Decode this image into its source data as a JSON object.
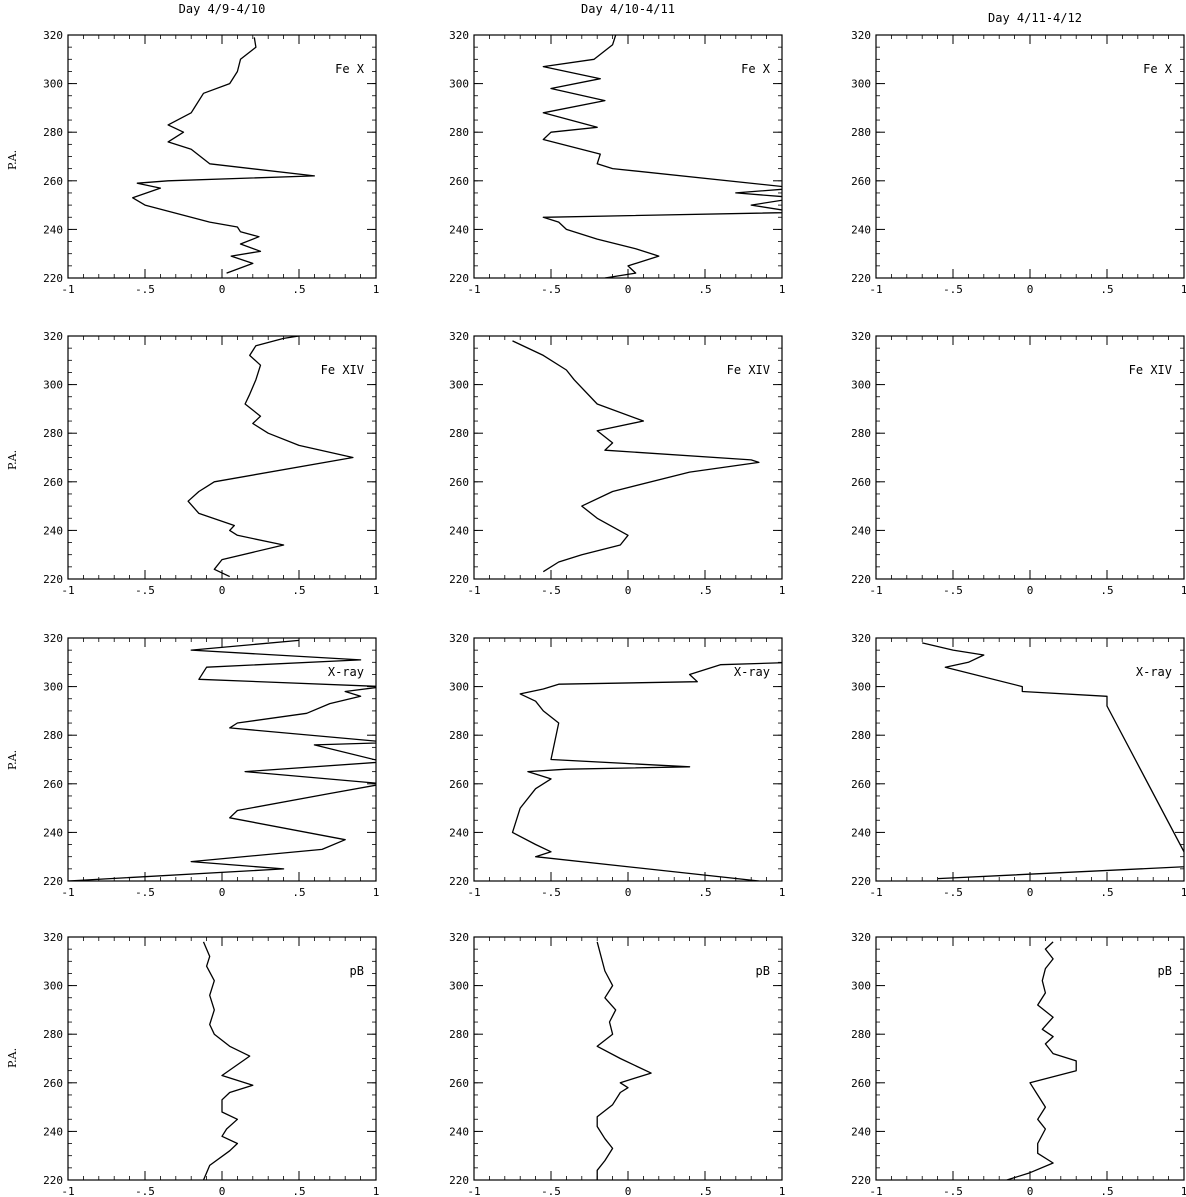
{
  "figure": {
    "column_titles": [
      "Day 4/9-4/10",
      "Day 4/10-4/11",
      "Day 4/11-4/12"
    ],
    "row_ylabel": "P.A.",
    "row_labels": [
      "Fe X",
      "Fe XIV",
      "X-ray",
      "pB"
    ]
  },
  "chart_data": [
    {
      "type": "line",
      "panel_label": "Fe X",
      "column_title": "Day 4/9-4/10",
      "ylabel": "P.A.",
      "xlim": [
        -1,
        1
      ],
      "ylim": [
        220,
        320
      ],
      "xticks": [
        "-1",
        "-.5",
        "0",
        ".5",
        "1"
      ],
      "yticks": [
        "220",
        "240",
        "260",
        "280",
        "300",
        "320"
      ],
      "series": [
        {
          "x": [
            0.03,
            0.2,
            0.06,
            0.25,
            0.12,
            0.24,
            0.12,
            0.1,
            -0.08,
            -0.5,
            -0.58,
            -0.4,
            -0.55,
            -0.35,
            0.6,
            -0.08,
            -0.2,
            -0.35,
            -0.25,
            -0.35,
            -0.2,
            -0.18,
            -0.12,
            0.05,
            0.1,
            0.12,
            0.22,
            0.21
          ],
          "y": [
            222,
            226,
            229,
            231,
            234,
            237,
            239,
            241,
            243,
            250,
            253,
            257,
            259,
            260,
            262,
            267,
            273,
            276,
            280,
            283,
            288,
            290,
            296,
            300,
            305,
            310,
            315,
            319
          ]
        }
      ]
    },
    {
      "type": "line",
      "panel_label": "Fe X",
      "column_title": "Day 4/10-4/11",
      "ylabel": "P.A.",
      "xlim": [
        -1,
        1
      ],
      "ylim": [
        220,
        320
      ],
      "xticks": [
        "-1",
        "-.5",
        "0",
        ".5",
        "1"
      ],
      "yticks": [
        "220",
        "240",
        "260",
        "280",
        "300",
        "320"
      ],
      "series": [
        {
          "x": [
            -0.15,
            0.05,
            0.0,
            0.2,
            0.05,
            -0.2,
            -0.4,
            -0.45,
            -0.55,
            1.1,
            0.8,
            1.1,
            0.7,
            1.1,
            -0.1,
            -0.2,
            -0.18,
            -0.55,
            -0.5,
            -0.2,
            -0.55,
            -0.15,
            -0.5,
            -0.18,
            -0.55,
            -0.22,
            -0.1,
            -0.08
          ],
          "y": [
            220,
            222,
            225,
            229,
            232,
            236,
            240,
            243,
            245,
            247,
            250,
            253,
            255,
            257,
            265,
            267,
            271,
            277,
            280,
            282,
            288,
            293,
            298,
            302,
            307,
            310,
            316,
            320
          ]
        }
      ]
    },
    {
      "type": "line",
      "panel_label": "Fe X",
      "column_title": "Day 4/11-4/12",
      "ylabel": "P.A.",
      "xlim": [
        -1,
        1
      ],
      "ylim": [
        220,
        320
      ],
      "xticks": [
        "-1",
        "-.5",
        "0",
        ".5",
        "1"
      ],
      "yticks": [
        "220",
        "240",
        "260",
        "280",
        "300",
        "320"
      ],
      "series": []
    },
    {
      "type": "line",
      "panel_label": "Fe XIV",
      "column_title": "Day 4/9-4/10",
      "ylabel": "P.A.",
      "xlim": [
        -1,
        1
      ],
      "ylim": [
        220,
        320
      ],
      "xticks": [
        "-1",
        "-.5",
        "0",
        ".5",
        "1"
      ],
      "yticks": [
        "220",
        "240",
        "260",
        "280",
        "300",
        "320"
      ],
      "series": [
        {
          "x": [
            0.05,
            -0.05,
            0.0,
            0.4,
            0.1,
            0.05,
            0.08,
            -0.15,
            -0.22,
            -0.15,
            -0.1,
            -0.05,
            0.85,
            0.5,
            0.3,
            0.2,
            0.25,
            0.15,
            0.18,
            0.22,
            0.25,
            0.18,
            0.22,
            0.4,
            0.5
          ],
          "y": [
            221,
            224,
            228,
            234,
            238,
            240,
            242,
            247,
            252,
            256,
            258,
            260,
            270,
            275,
            280,
            284,
            287,
            292,
            296,
            302,
            308,
            312,
            316,
            319,
            320
          ]
        }
      ]
    },
    {
      "type": "line",
      "panel_label": "Fe XIV",
      "column_title": "Day 4/10-4/11",
      "ylabel": "P.A.",
      "xlim": [
        -1,
        1
      ],
      "ylim": [
        220,
        320
      ],
      "xticks": [
        "-1",
        "-.5",
        "0",
        ".5",
        "1"
      ],
      "yticks": [
        "220",
        "240",
        "260",
        "280",
        "300",
        "320"
      ],
      "series": [
        {
          "x": [
            -0.55,
            -0.45,
            -0.3,
            -0.05,
            0.0,
            -0.2,
            -0.3,
            -0.1,
            0.4,
            0.85,
            0.8,
            -0.15,
            -0.1,
            -0.2,
            0.1,
            -0.2,
            -0.35,
            -0.4,
            -0.55,
            -0.75
          ],
          "y": [
            223,
            227,
            230,
            234,
            238,
            245,
            250,
            256,
            264,
            268,
            269,
            273,
            276,
            281,
            285,
            292,
            302,
            306,
            312,
            318
          ]
        }
      ]
    },
    {
      "type": "line",
      "panel_label": "Fe XIV",
      "column_title": "Day 4/11-4/12",
      "ylabel": "P.A.",
      "xlim": [
        -1,
        1
      ],
      "ylim": [
        220,
        320
      ],
      "xticks": [
        "-1",
        "-.5",
        "0",
        ".5",
        "1"
      ],
      "yticks": [
        "220",
        "240",
        "260",
        "280",
        "300",
        "320"
      ],
      "series": []
    },
    {
      "type": "line",
      "panel_label": "X-ray",
      "column_title": "Day 4/9-4/10",
      "ylabel": "P.A.",
      "xlim": [
        -1,
        1
      ],
      "ylim": [
        220,
        320
      ],
      "xticks": [
        "-1",
        "-.5",
        "0",
        ".5",
        "1"
      ],
      "yticks": [
        "220",
        "240",
        "260",
        "280",
        "300",
        "320"
      ],
      "series": [
        {
          "x": [
            -1.0,
            0.4,
            -0.2,
            0.65,
            0.8,
            0.05,
            0.1,
            0.7,
            1.05,
            0.15,
            1.05,
            0.6,
            1.1,
            0.05,
            0.1,
            0.55,
            0.7,
            0.9,
            0.8,
            1.05,
            -0.15,
            -0.1,
            0.9,
            -0.2,
            0.5
          ],
          "y": [
            220,
            225,
            228,
            233,
            237,
            246,
            249,
            256,
            260,
            265,
            269,
            276,
            277,
            283,
            285,
            289,
            293,
            296,
            298,
            300,
            303,
            308,
            311,
            315,
            319
          ]
        }
      ]
    },
    {
      "type": "line",
      "panel_label": "X-ray",
      "column_title": "Day 4/10-4/11",
      "ylabel": "P.A.",
      "xlim": [
        -1,
        1
      ],
      "ylim": [
        220,
        320
      ],
      "xticks": [
        "-1",
        "-.5",
        "0",
        ".5",
        "1"
      ],
      "yticks": [
        "220",
        "240",
        "260",
        "280",
        "300",
        "320"
      ],
      "series": [
        {
          "x": [
            0.85,
            -0.6,
            -0.5,
            -0.6,
            -0.75,
            -0.7,
            -0.6,
            -0.5,
            -0.65,
            -0.4,
            0.4,
            -0.5,
            -0.45,
            -0.55,
            -0.6,
            -0.7,
            -0.55,
            -0.45,
            0.45,
            0.4,
            0.6,
            1.1
          ],
          "y": [
            220,
            230,
            232,
            235,
            240,
            250,
            258,
            262,
            265,
            266,
            267,
            270,
            285,
            290,
            294,
            297,
            299,
            301,
            302,
            305,
            309,
            310
          ]
        }
      ]
    },
    {
      "type": "line",
      "panel_label": "X-ray",
      "column_title": "Day 4/11-4/12",
      "ylabel": "P.A.",
      "xlim": [
        -1,
        1
      ],
      "ylim": [
        220,
        320
      ],
      "xticks": [
        "-1",
        "-.5",
        "0",
        ".5",
        "1"
      ],
      "yticks": [
        "220",
        "240",
        "260",
        "280",
        "300",
        "320"
      ],
      "series": [
        {
          "x": [
            -0.6,
            1.05,
            0.5,
            0.5,
            -0.05,
            -0.05,
            -0.55,
            -0.4,
            -0.3,
            -0.5,
            -0.7
          ],
          "y": [
            221,
            226,
            292,
            296,
            298,
            300,
            308,
            310,
            313,
            315,
            318
          ]
        }
      ]
    },
    {
      "type": "line",
      "panel_label": "pB",
      "column_title": "Day 4/9-4/10",
      "ylabel": "P.A.",
      "xlim": [
        -1,
        1
      ],
      "ylim": [
        220,
        320
      ],
      "xticks": [
        "-1",
        "-.5",
        "0",
        ".5",
        "1"
      ],
      "yticks": [
        "220",
        "240",
        "260",
        "280",
        "300",
        "320"
      ],
      "series": [
        {
          "x": [
            -0.12,
            -0.1,
            -0.08,
            0.05,
            0.1,
            0.0,
            0.03,
            0.1,
            0.0,
            0.0,
            0.05,
            0.2,
            0.0,
            0.18,
            0.05,
            -0.05,
            -0.08,
            -0.05,
            -0.08,
            -0.05,
            -0.1,
            -0.08,
            -0.12
          ],
          "y": [
            220,
            223,
            226,
            232,
            235,
            238,
            241,
            245,
            248,
            253,
            256,
            259,
            263,
            271,
            275,
            280,
            284,
            290,
            296,
            302,
            308,
            312,
            318
          ]
        }
      ]
    },
    {
      "type": "line",
      "panel_label": "pB",
      "column_title": "Day 4/10-4/11",
      "ylabel": "P.A.",
      "xlim": [
        -1,
        1
      ],
      "ylim": [
        220,
        320
      ],
      "xticks": [
        "-1",
        "-.5",
        "0",
        ".5",
        "1"
      ],
      "yticks": [
        "220",
        "240",
        "260",
        "280",
        "300",
        "320"
      ],
      "series": [
        {
          "x": [
            -0.2,
            -0.2,
            -0.15,
            -0.1,
            -0.15,
            -0.2,
            -0.2,
            -0.1,
            -0.05,
            0.0,
            -0.05,
            0.05,
            0.15,
            -0.05,
            -0.2,
            -0.1,
            -0.12,
            -0.08,
            -0.15,
            -0.1,
            -0.15,
            -0.2
          ],
          "y": [
            220,
            224,
            228,
            233,
            237,
            242,
            246,
            251,
            256,
            258,
            260,
            262,
            264,
            270,
            275,
            280,
            285,
            290,
            295,
            300,
            306,
            318
          ]
        }
      ]
    },
    {
      "type": "line",
      "panel_label": "pB",
      "column_title": "Day 4/11-4/12",
      "ylabel": "P.A.",
      "xlim": [
        -1,
        1
      ],
      "ylim": [
        220,
        320
      ],
      "xticks": [
        "-1",
        "-.5",
        "0",
        ".5",
        "1"
      ],
      "yticks": [
        "220",
        "240",
        "260",
        "280",
        "300",
        "320"
      ],
      "series": [
        {
          "x": [
            -0.15,
            0.0,
            0.15,
            0.05,
            0.05,
            0.1,
            0.05,
            0.1,
            0.05,
            0.0,
            0.3,
            0.3,
            0.15,
            0.1,
            0.15,
            0.08,
            0.15,
            0.05,
            0.1,
            0.08,
            0.1,
            0.15,
            0.1,
            0.15
          ],
          "y": [
            220,
            223,
            227,
            231,
            235,
            241,
            245,
            250,
            255,
            260,
            265,
            269,
            272,
            276,
            279,
            282,
            287,
            292,
            297,
            302,
            307,
            311,
            315,
            318
          ]
        }
      ]
    }
  ]
}
